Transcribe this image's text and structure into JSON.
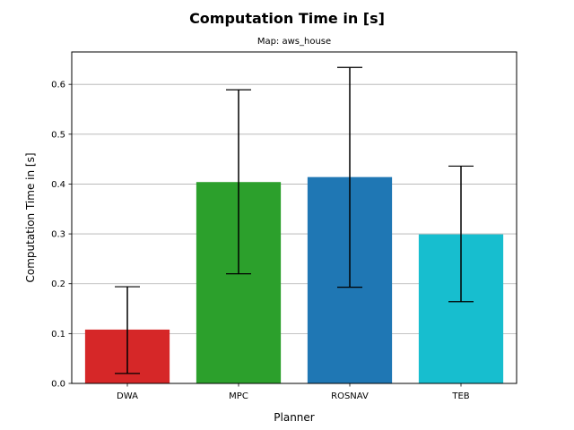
{
  "chart_data": {
    "type": "bar",
    "title": "Computation Time in [s]",
    "subtitle": "Map: aws_house",
    "xlabel": "Planner",
    "ylabel": "Computation Time in [s]",
    "categories": [
      "DWA",
      "MPC",
      "ROSNAV",
      "TEB"
    ],
    "values": [
      0.108,
      0.404,
      0.414,
      0.299
    ],
    "error_low": [
      0.02,
      0.22,
      0.193,
      0.164
    ],
    "error_high": [
      0.194,
      0.589,
      0.634,
      0.436
    ],
    "colors": [
      "#d62728",
      "#2ca02c",
      "#1f77b4",
      "#17becf"
    ],
    "ylim": [
      0,
      0.665
    ],
    "yticks": [
      "0.0",
      "0.1",
      "0.2",
      "0.3",
      "0.4",
      "0.5",
      "0.6"
    ],
    "grid": "y"
  }
}
